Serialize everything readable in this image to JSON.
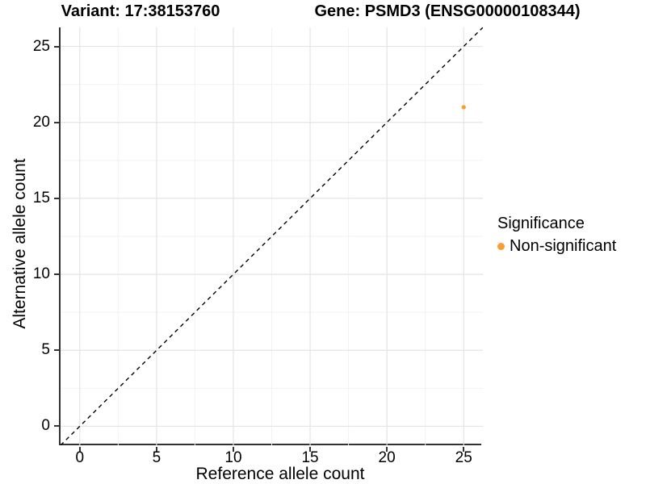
{
  "titles": {
    "variant": "Variant: 17:38153760",
    "gene": "Gene: PSMD3 (ENSG00000108344)"
  },
  "axes": {
    "x_label": "Reference allele count",
    "y_label": "Alternative allele count"
  },
  "legend": {
    "title": "Significance",
    "items": [
      {
        "label": "Non-significant",
        "color": "#FA9E32"
      }
    ]
  },
  "colors": {
    "background": "#FFFFFF",
    "axis_line": "#333333",
    "grid_major": "#E4E4E4",
    "grid_minor": "#F2F2F2",
    "reference_line": "#000000",
    "point_orange": "#FA9E32",
    "text": "#000000"
  },
  "chart_data": {
    "type": "scatter",
    "title": "Variant: 17:38153760   Gene: PSMD3 (ENSG00000108344)",
    "xlabel": "Reference allele count",
    "ylabel": "Alternative allele count",
    "xlim": [
      -1.25,
      26.25
    ],
    "ylim": [
      -1.25,
      26.25
    ],
    "x_ticks": [
      0,
      5,
      10,
      15,
      20,
      25
    ],
    "y_ticks": [
      0,
      5,
      10,
      15,
      20,
      25
    ],
    "x_minor_ticks": [
      2.5,
      7.5,
      12.5,
      17.5,
      22.5
    ],
    "y_minor_ticks": [
      2.5,
      7.5,
      12.5,
      17.5,
      22.5
    ],
    "grid": true,
    "legend_position": "right",
    "series": [
      {
        "name": "Non-significant",
        "color": "#FA9E32",
        "point_radius": 2.7,
        "points": [
          [
            25,
            21
          ]
        ]
      }
    ],
    "reference_line": {
      "type": "identity",
      "style": "dashed",
      "color": "#000000",
      "from": [
        -1.25,
        -1.25
      ],
      "to": [
        26.25,
        26.25
      ]
    }
  }
}
